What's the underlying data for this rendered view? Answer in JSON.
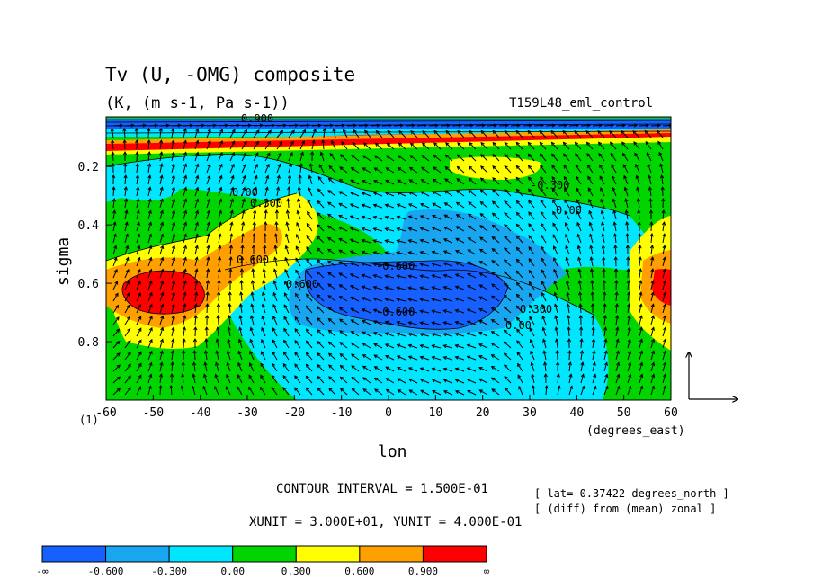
{
  "chart_data": {
    "type": "heatmap",
    "title": "Tv (U, -OMG) composite",
    "subtitle": "(K, (m s-1, Pa s-1))",
    "run_label": "T159L48_eml_control",
    "xlabel": "lon",
    "ylabel": "sigma",
    "x_unit_label": "(degrees_east)",
    "frame_label": "(1)",
    "xlim": [
      -60,
      60
    ],
    "ylim": [
      1.0,
      0.03
    ],
    "xticks": [
      "-60",
      "-50",
      "-40",
      "-30",
      "-20",
      "-10",
      "0",
      "10",
      "20",
      "30",
      "40",
      "50",
      "60"
    ],
    "yticks": [
      "0.2",
      "0.4",
      "0.6",
      "0.8"
    ],
    "contour_interval_text": "CONTOUR INTERVAL = 1.500E-01",
    "vector_unit_text": "XUNIT = 3.000E+01, YUNIT = 4.000E-01",
    "info_lines": [
      "[ lat=-0.37422 degrees_north ]",
      "[ (diff) from (mean) zonal ]"
    ],
    "contour_labels": [
      "0.00",
      "0.300",
      "0.600",
      "-0.300",
      "-0.600",
      "-0.600",
      "0.300",
      "0.00",
      "0.600",
      "0.900",
      "0.00"
    ],
    "levels": [
      -0.6,
      -0.3,
      0.0,
      0.3,
      0.6,
      0.9
    ],
    "colorbar": {
      "colors": [
        "#1560ff",
        "#18a6f0",
        "#00e6ff",
        "#00d500",
        "#ffff00",
        "#ffa000",
        "#ff0000"
      ],
      "labels": [
        "-∞",
        "-0.600",
        "-0.300",
        "0.00",
        "0.300",
        "0.600",
        "0.900",
        "∞"
      ]
    },
    "grid": false
  }
}
